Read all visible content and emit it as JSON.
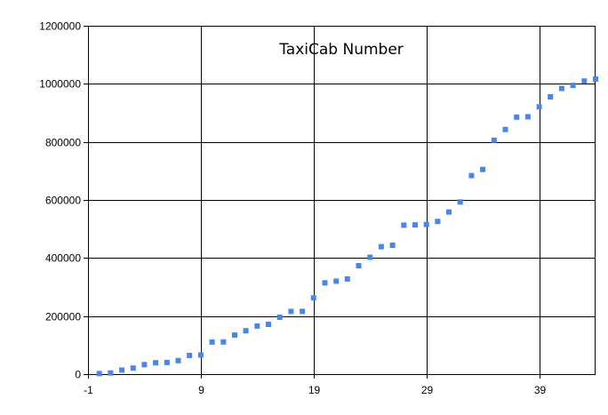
{
  "chart_data": {
    "type": "scatter",
    "title": "TaxiCab Number",
    "xlabel": "",
    "ylabel": "",
    "xlim": [
      -1,
      44
    ],
    "ylim": [
      0,
      1200000
    ],
    "x_ticks": [
      -1,
      9,
      19,
      29,
      39
    ],
    "x_tick_labels": [
      "-1",
      "9",
      "19",
      "29",
      "39"
    ],
    "y_ticks": [
      0,
      200000,
      400000,
      600000,
      800000,
      1000000,
      1200000
    ],
    "y_tick_labels": [
      "0",
      "200000",
      "400000",
      "600000",
      "800000",
      "1000000",
      "1200000"
    ],
    "grid": true,
    "legend": "none",
    "marker": "square",
    "series": [
      {
        "color": "#4a86e8",
        "x": [
          0,
          1,
          2,
          3,
          4,
          5,
          6,
          7,
          8,
          9,
          10,
          11,
          12,
          13,
          14,
          15,
          16,
          17,
          18,
          19,
          20,
          21,
          22,
          23,
          24,
          25,
          26,
          27,
          28,
          29,
          30,
          31,
          32,
          33,
          34,
          35,
          36,
          37,
          38,
          39,
          40,
          41,
          42,
          43,
          44
        ],
        "y": [
          1729,
          4104,
          13832,
          20683,
          32832,
          39312,
          40033,
          46683,
          64232,
          65728,
          110656,
          110808,
          134379,
          149389,
          165464,
          171288,
          195841,
          216027,
          216125,
          262656,
          314496,
          320264,
          327763,
          373464,
          402597,
          439101,
          443889,
          513000,
          513856,
          515375,
          525824,
          558441,
          593047,
          684019,
          704977,
          805688,
          842751,
          885248,
          886464,
          920673,
          955016,
          984067,
          994688,
          1009736,
          1016496
        ]
      }
    ]
  }
}
